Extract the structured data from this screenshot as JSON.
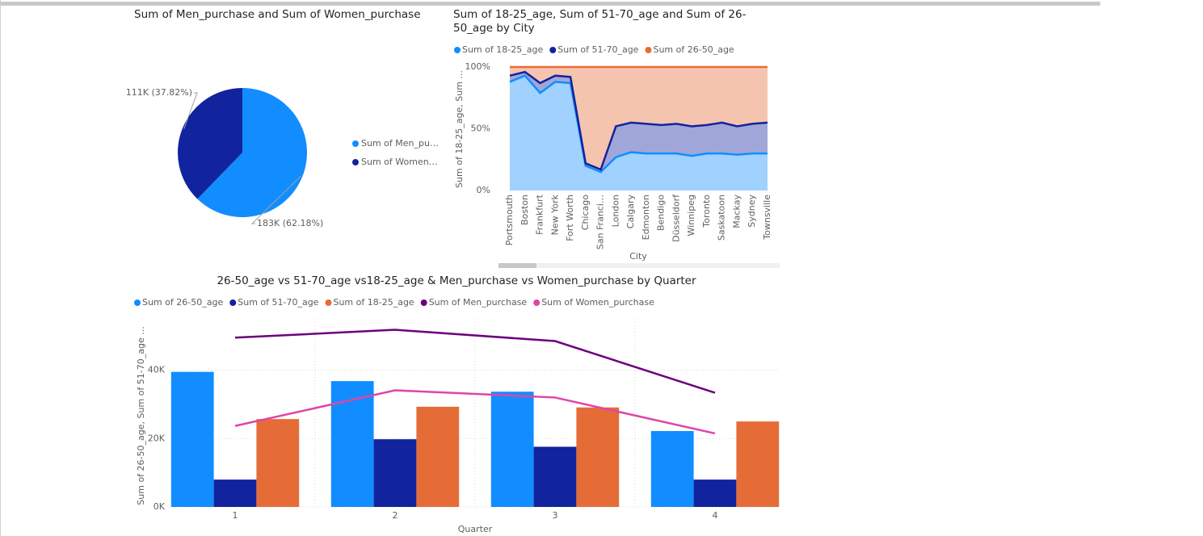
{
  "chart_data": [
    {
      "type": "pie",
      "title": "Sum of Men_purchase and Sum of Women_purchase",
      "categories": [
        "Sum of Men_pu…",
        "Sum of Women…"
      ],
      "values": [
        183000,
        111000
      ],
      "value_labels": [
        "183K (62.18%)",
        "111K (37.82%)"
      ],
      "colors": [
        "#118DFF",
        "#12239E"
      ]
    },
    {
      "type": "area",
      "stacked": "percent",
      "title": "Sum of 18-25_age, Sum of 51-70_age and Sum of 26-50_age by City",
      "x_label": "City",
      "y_label": "Sum of 18-25_age, Sum ...",
      "categories": [
        "Portsmouth",
        "Boston",
        "Frankfurt",
        "New York",
        "Fort Worth",
        "Chicago",
        "San Franci…",
        "London",
        "Calgary",
        "Edmonton",
        "Bendigo",
        "Düsseldorf",
        "Winnipeg",
        "Toronto",
        "Saskatoon",
        "Mackay",
        "Sydney",
        "Townsville"
      ],
      "series": [
        {
          "name": "Sum of 18-25_age",
          "color": "#118DFF",
          "values": [
            88,
            93,
            79,
            88,
            87,
            20,
            15,
            27,
            31,
            30,
            30,
            30,
            28,
            30,
            30,
            29,
            30,
            30
          ]
        },
        {
          "name": "Sum of 51-70_age",
          "color": "#12239E",
          "values": [
            5,
            3,
            8,
            5,
            5,
            2,
            2,
            25,
            24,
            24,
            23,
            24,
            24,
            23,
            25,
            23,
            24,
            25
          ]
        },
        {
          "name": "Sum of 26-50_age",
          "color": "#E66C37",
          "values": [
            7,
            4,
            13,
            7,
            8,
            78,
            83,
            48,
            45,
            46,
            47,
            46,
            48,
            47,
            45,
            48,
            46,
            45
          ]
        }
      ],
      "ylim": [
        0,
        100
      ],
      "yticks": [
        {
          "value": 0,
          "label": "0%"
        },
        {
          "value": 50,
          "label": "50%"
        },
        {
          "value": 100,
          "label": "100%"
        }
      ]
    },
    {
      "type": "combo",
      "title": "26-50_age vs 51-70_age vs18-25_age & Men_purchase vs Women_purchase by Quarter",
      "x_label": "Quarter",
      "y_label": "Sum of 26-50_age, Sum of 51-70_age ...",
      "categories": [
        "1",
        "2",
        "3",
        "4"
      ],
      "series": [
        {
          "name": "Sum of 26-50_age",
          "type": "bar",
          "color": "#118DFF",
          "values": [
            39500,
            36800,
            33700,
            22200
          ]
        },
        {
          "name": "Sum of 51-70_age",
          "type": "bar",
          "color": "#12239E",
          "values": [
            8000,
            19800,
            17600,
            8000
          ]
        },
        {
          "name": "Sum of 18-25_age",
          "type": "bar",
          "color": "#E66C37",
          "values": [
            25700,
            29300,
            29100,
            25000
          ]
        },
        {
          "name": "Sum of Men_purchase",
          "type": "line",
          "color": "#6B007B",
          "values": [
            49500,
            51800,
            48500,
            33400
          ]
        },
        {
          "name": "Sum of Women_purchase",
          "type": "line",
          "color": "#E044A7",
          "values": [
            23700,
            34100,
            32000,
            21500
          ]
        }
      ],
      "ylim": [
        0,
        55000
      ],
      "yticks": [
        {
          "value": 0,
          "label": "0K"
        },
        {
          "value": 20000,
          "label": "20K"
        },
        {
          "value": 40000,
          "label": "40K"
        }
      ],
      "grid": true
    }
  ]
}
